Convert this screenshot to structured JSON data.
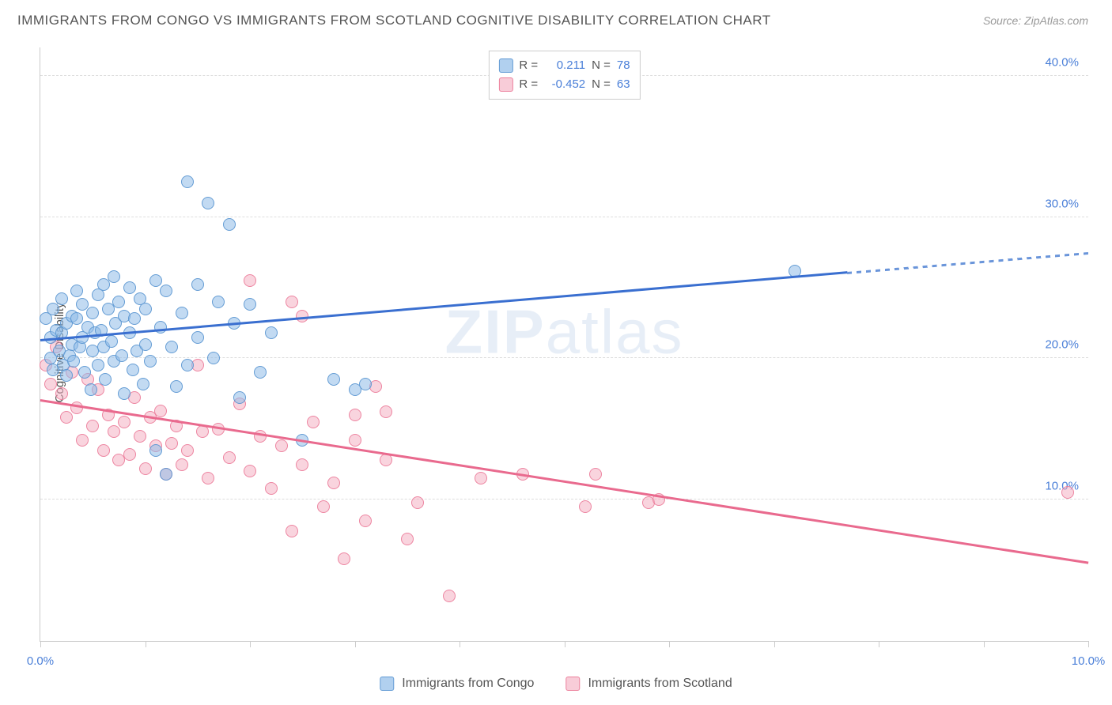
{
  "title": "IMMIGRANTS FROM CONGO VS IMMIGRANTS FROM SCOTLAND COGNITIVE DISABILITY CORRELATION CHART",
  "source": "Source: ZipAtlas.com",
  "ylabel": "Cognitive Disability",
  "watermark_bold": "ZIP",
  "watermark_rest": "atlas",
  "chart": {
    "type": "scatter",
    "xlim": [
      0,
      10
    ],
    "ylim": [
      0,
      42
    ],
    "background_color": "#ffffff",
    "grid_color": "#dddddd",
    "axis_color": "#cccccc",
    "yticks": [
      10,
      20,
      30,
      40
    ],
    "ytick_labels": [
      "10.0%",
      "20.0%",
      "30.0%",
      "40.0%"
    ],
    "xticks": [
      0,
      1,
      2,
      3,
      4,
      5,
      6,
      7,
      8,
      9,
      10
    ],
    "xtick_labels": {
      "0": "0.0%",
      "10": "10.0%"
    },
    "tick_label_color": "#4a7fd8",
    "tick_label_fontsize": 15,
    "marker_size": 16,
    "series": {
      "congo": {
        "label": "Immigrants from Congo",
        "color_fill": "rgba(144,188,232,0.55)",
        "color_stroke": "rgba(90,150,210,0.9)",
        "trend_color": "#3a6fd0",
        "trend_start": [
          0,
          21.2
        ],
        "trend_solid_end": [
          7.7,
          26.0
        ],
        "trend_dash_end": [
          10,
          27.4
        ],
        "R": 0.211,
        "N": 78,
        "points": [
          [
            0.05,
            22.8
          ],
          [
            0.1,
            21.5
          ],
          [
            0.1,
            20.0
          ],
          [
            0.12,
            19.2
          ],
          [
            0.12,
            23.5
          ],
          [
            0.15,
            22.0
          ],
          [
            0.18,
            20.5
          ],
          [
            0.2,
            21.8
          ],
          [
            0.2,
            24.2
          ],
          [
            0.22,
            19.5
          ],
          [
            0.25,
            22.5
          ],
          [
            0.25,
            18.8
          ],
          [
            0.28,
            20.2
          ],
          [
            0.3,
            23.0
          ],
          [
            0.3,
            21.0
          ],
          [
            0.32,
            19.8
          ],
          [
            0.35,
            22.8
          ],
          [
            0.35,
            24.8
          ],
          [
            0.38,
            20.8
          ],
          [
            0.4,
            21.5
          ],
          [
            0.4,
            23.8
          ],
          [
            0.42,
            19.0
          ],
          [
            0.45,
            22.2
          ],
          [
            0.48,
            17.8
          ],
          [
            0.5,
            20.5
          ],
          [
            0.5,
            23.2
          ],
          [
            0.52,
            21.8
          ],
          [
            0.55,
            24.5
          ],
          [
            0.55,
            19.5
          ],
          [
            0.58,
            22.0
          ],
          [
            0.6,
            25.2
          ],
          [
            0.6,
            20.8
          ],
          [
            0.62,
            18.5
          ],
          [
            0.65,
            23.5
          ],
          [
            0.68,
            21.2
          ],
          [
            0.7,
            25.8
          ],
          [
            0.7,
            19.8
          ],
          [
            0.72,
            22.5
          ],
          [
            0.75,
            24.0
          ],
          [
            0.78,
            20.2
          ],
          [
            0.8,
            23.0
          ],
          [
            0.8,
            17.5
          ],
          [
            0.85,
            21.8
          ],
          [
            0.85,
            25.0
          ],
          [
            0.88,
            19.2
          ],
          [
            0.9,
            22.8
          ],
          [
            0.92,
            20.5
          ],
          [
            0.95,
            24.2
          ],
          [
            0.98,
            18.2
          ],
          [
            1.0,
            23.5
          ],
          [
            1.0,
            21.0
          ],
          [
            1.05,
            19.8
          ],
          [
            1.1,
            25.5
          ],
          [
            1.1,
            13.5
          ],
          [
            1.15,
            22.2
          ],
          [
            1.2,
            24.8
          ],
          [
            1.2,
            11.8
          ],
          [
            1.25,
            20.8
          ],
          [
            1.3,
            18.0
          ],
          [
            1.35,
            23.2
          ],
          [
            1.4,
            32.5
          ],
          [
            1.4,
            19.5
          ],
          [
            1.5,
            25.2
          ],
          [
            1.5,
            21.5
          ],
          [
            1.6,
            31.0
          ],
          [
            1.65,
            20.0
          ],
          [
            1.7,
            24.0
          ],
          [
            1.8,
            29.5
          ],
          [
            1.85,
            22.5
          ],
          [
            1.9,
            17.2
          ],
          [
            2.0,
            23.8
          ],
          [
            2.1,
            19.0
          ],
          [
            2.2,
            21.8
          ],
          [
            2.5,
            14.2
          ],
          [
            2.8,
            18.5
          ],
          [
            3.0,
            17.8
          ],
          [
            3.1,
            18.2
          ],
          [
            7.2,
            26.2
          ]
        ]
      },
      "scotland": {
        "label": "Immigrants from Scotland",
        "color_fill": "rgba(244,170,190,0.5)",
        "color_stroke": "rgba(235,120,150,0.85)",
        "trend_color": "#e96a8e",
        "trend_start": [
          0,
          17.0
        ],
        "trend_end": [
          10,
          5.5
        ],
        "R": -0.452,
        "N": 63,
        "points": [
          [
            0.05,
            19.5
          ],
          [
            0.1,
            18.2
          ],
          [
            0.15,
            20.8
          ],
          [
            0.2,
            17.5
          ],
          [
            0.25,
            15.8
          ],
          [
            0.3,
            19.0
          ],
          [
            0.35,
            16.5
          ],
          [
            0.4,
            14.2
          ],
          [
            0.45,
            18.5
          ],
          [
            0.5,
            15.2
          ],
          [
            0.55,
            17.8
          ],
          [
            0.6,
            13.5
          ],
          [
            0.65,
            16.0
          ],
          [
            0.7,
            14.8
          ],
          [
            0.75,
            12.8
          ],
          [
            0.8,
            15.5
          ],
          [
            0.85,
            13.2
          ],
          [
            0.9,
            17.2
          ],
          [
            0.95,
            14.5
          ],
          [
            1.0,
            12.2
          ],
          [
            1.05,
            15.8
          ],
          [
            1.1,
            13.8
          ],
          [
            1.15,
            16.3
          ],
          [
            1.2,
            11.8
          ],
          [
            1.25,
            14.0
          ],
          [
            1.3,
            15.2
          ],
          [
            1.35,
            12.5
          ],
          [
            1.4,
            13.5
          ],
          [
            1.5,
            19.5
          ],
          [
            1.55,
            14.8
          ],
          [
            1.6,
            11.5
          ],
          [
            1.7,
            15.0
          ],
          [
            1.8,
            13.0
          ],
          [
            1.9,
            16.8
          ],
          [
            2.0,
            12.0
          ],
          [
            2.0,
            25.5
          ],
          [
            2.1,
            14.5
          ],
          [
            2.2,
            10.8
          ],
          [
            2.3,
            13.8
          ],
          [
            2.4,
            7.8
          ],
          [
            2.4,
            24.0
          ],
          [
            2.5,
            12.5
          ],
          [
            2.5,
            23.0
          ],
          [
            2.6,
            15.5
          ],
          [
            2.7,
            9.5
          ],
          [
            2.8,
            11.2
          ],
          [
            2.9,
            5.8
          ],
          [
            3.0,
            14.2
          ],
          [
            3.0,
            16.0
          ],
          [
            3.1,
            8.5
          ],
          [
            3.2,
            18.0
          ],
          [
            3.3,
            12.8
          ],
          [
            3.3,
            16.2
          ],
          [
            3.5,
            7.2
          ],
          [
            3.6,
            9.8
          ],
          [
            3.9,
            3.2
          ],
          [
            4.2,
            11.5
          ],
          [
            4.6,
            11.8
          ],
          [
            5.2,
            9.5
          ],
          [
            5.3,
            11.8
          ],
          [
            5.8,
            9.8
          ],
          [
            5.9,
            10.0
          ],
          [
            9.8,
            10.5
          ]
        ]
      }
    },
    "stats_labels": {
      "R": "R =",
      "N": "N ="
    }
  },
  "bottom_legend": [
    {
      "key": "congo",
      "label": "Immigrants from Congo"
    },
    {
      "key": "scotland",
      "label": "Immigrants from Scotland"
    }
  ]
}
